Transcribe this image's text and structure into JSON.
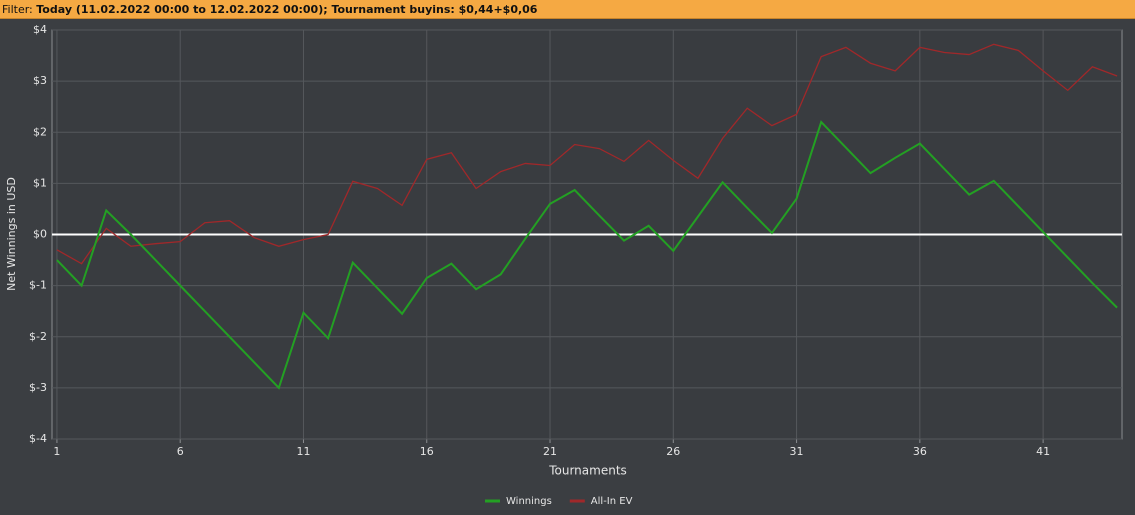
{
  "filter": {
    "label": "Filter:",
    "text": "Today (11.02.2022 00:00 to 12.02.2022 00:00); Tournament buyins: $0,44+$0,06"
  },
  "chart_data": {
    "type": "line",
    "x_label": "Tournaments",
    "y_label": "Net Winnings in USD",
    "x": [
      1,
      2,
      3,
      4,
      5,
      6,
      7,
      8,
      9,
      10,
      11,
      12,
      13,
      14,
      15,
      16,
      17,
      18,
      19,
      20,
      21,
      22,
      23,
      24,
      25,
      26,
      27,
      28,
      29,
      30,
      31,
      32,
      33,
      34,
      35,
      36,
      37,
      38,
      39,
      40,
      41,
      42,
      43,
      44
    ],
    "series": [
      {
        "name": "Winnings",
        "color": "#23a023",
        "values": [
          -0.5,
          -1.0,
          0.47,
          0,
          -0.5,
          -1.0,
          -1.5,
          -2.0,
          -2.5,
          -3.0,
          -1.53,
          -2.03,
          -0.55,
          -1.05,
          -1.55,
          -0.85,
          -0.57,
          -1.07,
          -0.78,
          -0.08,
          0.6,
          0.87,
          0.37,
          -0.12,
          0.17,
          -0.32,
          0.35,
          1.02,
          0.52,
          0.03,
          0.7,
          2.2,
          1.7,
          1.2,
          1.5,
          1.78,
          1.28,
          0.78,
          1.05,
          0.55,
          0.05,
          -0.45,
          -0.95,
          -1.43
        ]
      },
      {
        "name": "All-In EV",
        "color": "#a0282a",
        "values": [
          -0.3,
          -0.57,
          0.12,
          -0.23,
          -0.18,
          -0.14,
          0.23,
          0.27,
          -0.06,
          -0.23,
          -0.1,
          0,
          1.04,
          0.9,
          0.57,
          1.47,
          1.6,
          0.9,
          1.23,
          1.39,
          1.35,
          1.76,
          1.68,
          1.43,
          1.84,
          1.45,
          1.1,
          1.88,
          2.47,
          2.13,
          2.35,
          3.48,
          3.66,
          3.35,
          3.2,
          3.66,
          3.56,
          3.52,
          3.72,
          3.6,
          3.2,
          2.82,
          3.28,
          3.1
        ]
      }
    ],
    "xlim": [
      0.8,
      44.2
    ],
    "xticks": [
      1,
      6,
      11,
      16,
      21,
      26,
      31,
      36,
      41
    ],
    "ylim": [
      -4,
      4
    ],
    "yticks": [
      {
        "value": -4,
        "label": "$-4"
      },
      {
        "value": -3,
        "label": "$-3"
      },
      {
        "value": -2,
        "label": "$-2"
      },
      {
        "value": -1,
        "label": "$-1"
      },
      {
        "value": 0,
        "label": "$0"
      },
      {
        "value": 1,
        "label": "$1"
      },
      {
        "value": 2,
        "label": "$2"
      },
      {
        "value": 3,
        "label": "$3"
      },
      {
        "value": 4,
        "label": "$4"
      }
    ],
    "grid": true,
    "legend": "bottom"
  }
}
